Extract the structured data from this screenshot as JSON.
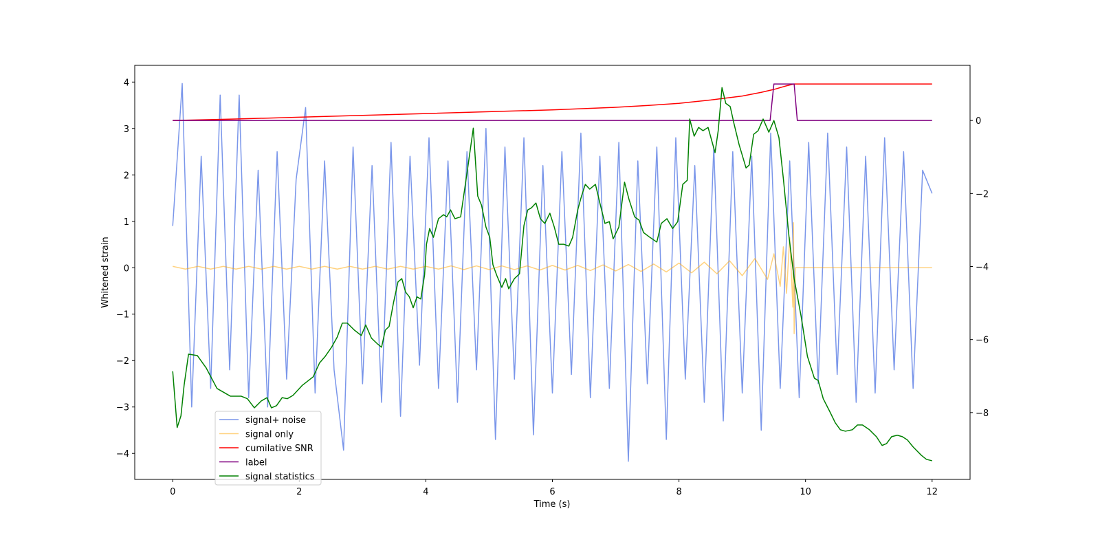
{
  "chart_data": {
    "type": "line",
    "xlabel": "Time (s)",
    "ylabel": "Whitened strain",
    "xlim": [
      -0.6,
      12.6
    ],
    "ylim": [
      -4.56,
      4.36
    ],
    "y2lim": [
      -9.83,
      1.51
    ],
    "xticks": [
      0,
      2,
      4,
      6,
      8,
      10,
      12
    ],
    "yticks": [
      {
        "value": -4,
        "label": "−4"
      },
      {
        "value": -3,
        "label": "−3"
      },
      {
        "value": -2,
        "label": "−2"
      },
      {
        "value": -1,
        "label": "−1"
      },
      0,
      1,
      2,
      3,
      4
    ],
    "y2ticks": [
      {
        "value": -8,
        "label": "−8"
      },
      {
        "value": -6,
        "label": "−6"
      },
      {
        "value": -4,
        "label": "−4"
      },
      {
        "value": -2,
        "label": "−2"
      },
      0
    ],
    "legend": "lower left",
    "series": [
      {
        "name": "signal+ noise",
        "color": "#4169e1",
        "alpha": 0.7,
        "x": [
          0,
          0.15,
          0.3,
          0.45,
          0.6,
          0.75,
          0.9,
          1.05,
          1.2,
          1.35,
          1.5,
          1.65,
          1.8,
          1.95,
          2.1,
          2.25,
          2.4,
          2.55,
          2.7,
          2.85,
          3,
          3.15,
          3.3,
          3.45,
          3.6,
          3.75,
          3.9,
          4.05,
          4.2,
          4.35,
          4.5,
          4.65,
          4.8,
          4.95,
          5.1,
          5.25,
          5.4,
          5.55,
          5.7,
          5.85,
          6,
          6.15,
          6.3,
          6.45,
          6.6,
          6.75,
          6.9,
          7.05,
          7.2,
          7.35,
          7.5,
          7.65,
          7.8,
          7.95,
          8.1,
          8.25,
          8.4,
          8.55,
          8.7,
          8.85,
          9,
          9.15,
          9.3,
          9.45,
          9.6,
          9.75,
          9.9,
          10.05,
          10.2,
          10.35,
          10.5,
          10.65,
          10.8,
          10.95,
          11.1,
          11.25,
          11.4,
          11.55,
          11.7,
          11.85,
          12
        ],
        "values": [
          0.9,
          3.97,
          -3.0,
          2.4,
          -2.6,
          3.72,
          -2.2,
          3.72,
          -2.8,
          2.1,
          -3.0,
          2.5,
          -2.4,
          1.9,
          3.45,
          -2.7,
          2.3,
          -2.2,
          -3.93,
          2.6,
          -2.5,
          2.2,
          -2.9,
          2.7,
          -3.2,
          2.4,
          -2.1,
          2.8,
          -2.6,
          2.3,
          -2.9,
          2.5,
          -2.2,
          3.0,
          -3.7,
          2.6,
          -2.4,
          2.8,
          -3.6,
          2.2,
          -2.7,
          2.5,
          -2.3,
          2.9,
          -2.8,
          2.4,
          -2.6,
          2.7,
          -4.17,
          2.3,
          -2.5,
          2.6,
          -3.7,
          2.8,
          -2.4,
          2.2,
          -2.9,
          2.6,
          -3.3,
          2.5,
          -2.7,
          2.4,
          -3.5,
          2.9,
          -2.6,
          2.3,
          -2.8,
          2.7,
          -2.5,
          2.9,
          -2.3,
          2.6,
          -2.9,
          2.4,
          -2.7,
          2.8,
          -2.2,
          2.5,
          -2.6,
          2.1,
          1.6
        ]
      },
      {
        "name": "signal only",
        "color": "#ffa500",
        "alpha": 0.5,
        "x": [
          0,
          0.2,
          0.4,
          0.6,
          0.8,
          1,
          1.2,
          1.4,
          1.6,
          1.8,
          2,
          2.2,
          2.4,
          2.6,
          2.8,
          3,
          3.2,
          3.4,
          3.6,
          3.8,
          4,
          4.2,
          4.4,
          4.6,
          4.8,
          5,
          5.2,
          5.4,
          5.6,
          5.8,
          6,
          6.2,
          6.4,
          6.6,
          6.8,
          7,
          7.2,
          7.4,
          7.6,
          7.8,
          8,
          8.2,
          8.4,
          8.6,
          8.8,
          9,
          9.2,
          9.4,
          9.5,
          9.6,
          9.65,
          9.7,
          9.75,
          9.8,
          9.81,
          9.82,
          9.84,
          12
        ],
        "values": [
          0.03,
          -0.03,
          0.03,
          -0.03,
          0.03,
          -0.03,
          0.03,
          -0.03,
          0.03,
          -0.03,
          0.03,
          -0.03,
          0.03,
          -0.03,
          0.03,
          -0.03,
          0.03,
          -0.03,
          0.03,
          -0.03,
          0.03,
          -0.03,
          0.04,
          -0.04,
          0.04,
          -0.04,
          0.04,
          -0.04,
          0.04,
          -0.05,
          0.05,
          -0.05,
          0.05,
          -0.06,
          0.06,
          -0.07,
          0.07,
          -0.08,
          0.08,
          -0.09,
          0.1,
          -0.11,
          0.12,
          -0.13,
          0.15,
          -0.17,
          0.2,
          -0.25,
          0.3,
          -0.4,
          0.45,
          -0.55,
          0.65,
          -0.85,
          0.97,
          -1.42,
          0,
          0
        ]
      },
      {
        "name": "cumilative SNR",
        "color": "#ff0000",
        "alpha": 1,
        "axis": "y2",
        "x": [
          0,
          1,
          2,
          3,
          4,
          5,
          6,
          7,
          7.5,
          8,
          8.5,
          9,
          9.3,
          9.5,
          9.7,
          9.82,
          12
        ],
        "values": [
          0,
          0.04,
          0.09,
          0.14,
          0.19,
          0.24,
          0.29,
          0.36,
          0.41,
          0.47,
          0.56,
          0.67,
          0.77,
          0.85,
          0.95,
          1.0,
          1.0
        ]
      },
      {
        "name": "label",
        "color": "#800080",
        "alpha": 1,
        "axis": "y2",
        "x": [
          0,
          9.44,
          9.5,
          9.82,
          9.87,
          12
        ],
        "values": [
          0,
          0,
          1,
          1,
          0,
          0
        ]
      },
      {
        "name": "signal statistics",
        "color": "#008000",
        "alpha": 1,
        "axis": "y2",
        "x": [
          0,
          0.07,
          0.13,
          0.18,
          0.25,
          0.39,
          0.53,
          0.7,
          0.91,
          1.08,
          1.18,
          1.29,
          1.4,
          1.49,
          1.56,
          1.64,
          1.73,
          1.81,
          1.9,
          2.05,
          2.22,
          2.32,
          2.41,
          2.51,
          2.6,
          2.68,
          2.76,
          2.87,
          2.98,
          3.05,
          3.14,
          3.23,
          3.3,
          3.36,
          3.42,
          3.49,
          3.56,
          3.62,
          3.68,
          3.74,
          3.8,
          3.86,
          3.92,
          3.98,
          4.01,
          4.06,
          4.12,
          4.2,
          4.28,
          4.33,
          4.39,
          4.46,
          4.55,
          4.66,
          4.75,
          4.82,
          4.88,
          4.95,
          5.01,
          5.06,
          5.12,
          5.2,
          5.26,
          5.31,
          5.4,
          5.48,
          5.55,
          5.61,
          5.67,
          5.74,
          5.81,
          5.88,
          5.96,
          6.03,
          6.1,
          6.18,
          6.26,
          6.32,
          6.4,
          6.46,
          6.52,
          6.59,
          6.68,
          6.75,
          6.83,
          6.9,
          6.96,
          7.05,
          7.14,
          7.21,
          7.3,
          7.37,
          7.44,
          7.54,
          7.65,
          7.72,
          7.81,
          7.9,
          7.98,
          8.06,
          8.13,
          8.17,
          8.24,
          8.31,
          8.38,
          8.46,
          8.57,
          8.62,
          8.68,
          8.74,
          8.81,
          8.87,
          8.95,
          9.06,
          9.11,
          9.18,
          9.25,
          9.33,
          9.42,
          9.5,
          9.58,
          9.65,
          9.74,
          9.82,
          9.93,
          10.03,
          10.14,
          10.2,
          10.28,
          10.38,
          10.47,
          10.55,
          10.63,
          10.74,
          10.82,
          10.9,
          11.01,
          11.12,
          11.21,
          11.28,
          11.36,
          11.45,
          11.53,
          11.61,
          11.7,
          11.83,
          11.91,
          12
        ],
        "values": [
          -6.87,
          -8.41,
          -8.09,
          -7.25,
          -6.4,
          -6.44,
          -6.78,
          -7.34,
          -7.55,
          -7.55,
          -7.62,
          -7.87,
          -7.68,
          -7.59,
          -7.87,
          -7.81,
          -7.59,
          -7.62,
          -7.53,
          -7.25,
          -7.02,
          -6.64,
          -6.46,
          -6.21,
          -5.93,
          -5.55,
          -5.55,
          -5.74,
          -5.89,
          -5.6,
          -5.96,
          -6.11,
          -6.21,
          -5.74,
          -5.64,
          -4.98,
          -4.42,
          -4.33,
          -4.7,
          -4.83,
          -5.13,
          -4.83,
          -4.89,
          -4.23,
          -3.39,
          -2.96,
          -3.2,
          -2.69,
          -2.58,
          -2.64,
          -2.45,
          -2.69,
          -2.64,
          -1.32,
          -0.21,
          -2.07,
          -2.32,
          -2.92,
          -3.2,
          -3.95,
          -4.24,
          -4.57,
          -4.33,
          -4.61,
          -4.33,
          -4.2,
          -2.88,
          -2.45,
          -2.39,
          -2.26,
          -2.69,
          -2.82,
          -2.54,
          -2.92,
          -3.39,
          -3.39,
          -3.44,
          -3.2,
          -2.45,
          -2.07,
          -1.75,
          -1.88,
          -1.75,
          -2.26,
          -2.82,
          -2.77,
          -3.24,
          -2.92,
          -1.69,
          -2.16,
          -2.64,
          -2.73,
          -3.07,
          -3.2,
          -3.33,
          -2.82,
          -2.69,
          -2.96,
          -2.77,
          -1.75,
          -1.64,
          0.04,
          -0.43,
          -0.19,
          -0.28,
          -0.19,
          -0.88,
          -0.28,
          0.9,
          0.47,
          0.38,
          -0.09,
          -0.66,
          -1.3,
          -1.22,
          -0.38,
          -0.28,
          0.04,
          -0.32,
          0,
          -0.47,
          -1.6,
          -3.2,
          -4.33,
          -5.36,
          -6.46,
          -7.06,
          -7.12,
          -7.62,
          -7.96,
          -8.28,
          -8.47,
          -8.51,
          -8.47,
          -8.34,
          -8.34,
          -8.47,
          -8.66,
          -8.9,
          -8.85,
          -8.66,
          -8.62,
          -8.66,
          -8.75,
          -8.94,
          -9.17,
          -9.28,
          -9.32
        ]
      }
    ]
  }
}
